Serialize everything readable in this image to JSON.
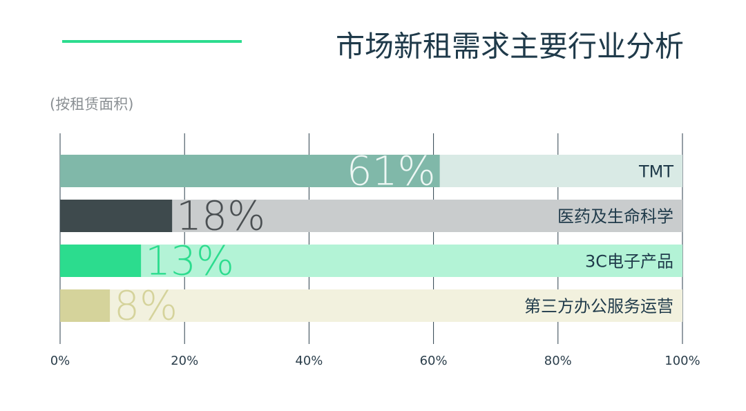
{
  "chart_data": {
    "type": "hbar",
    "title": "市场新租需求主要行业分析",
    "subtitle": "(按租赁面积)",
    "categories": [
      "TMT",
      "医药及生命科学",
      "3C电子产品",
      "第三方办公服务运营"
    ],
    "values": [
      61,
      18,
      13,
      8
    ],
    "value_labels": [
      "61%",
      "18%",
      "13%",
      "8%"
    ],
    "colors": [
      "#80b8a9",
      "#3e4a4d",
      "#2cdc8e",
      "#d5d39b"
    ],
    "track_colors": [
      "#d9eae5",
      "#c9cccd",
      "#b3f3d6",
      "#f2f1de"
    ],
    "label_colors": [
      "#eef7f4",
      "#4a4f52",
      "#2cdc8e",
      "#d5d39b"
    ],
    "xlim": [
      0,
      100
    ],
    "xticks": [
      {
        "value": 0,
        "label": "0%"
      },
      {
        "value": 20,
        "label": "20%"
      },
      {
        "value": 40,
        "label": "40%"
      },
      {
        "value": 60,
        "label": "60%"
      },
      {
        "value": 80,
        "label": "80%"
      },
      {
        "value": 100,
        "label": "100%"
      }
    ],
    "grid": true,
    "accent_color": "#2cdc8e"
  }
}
